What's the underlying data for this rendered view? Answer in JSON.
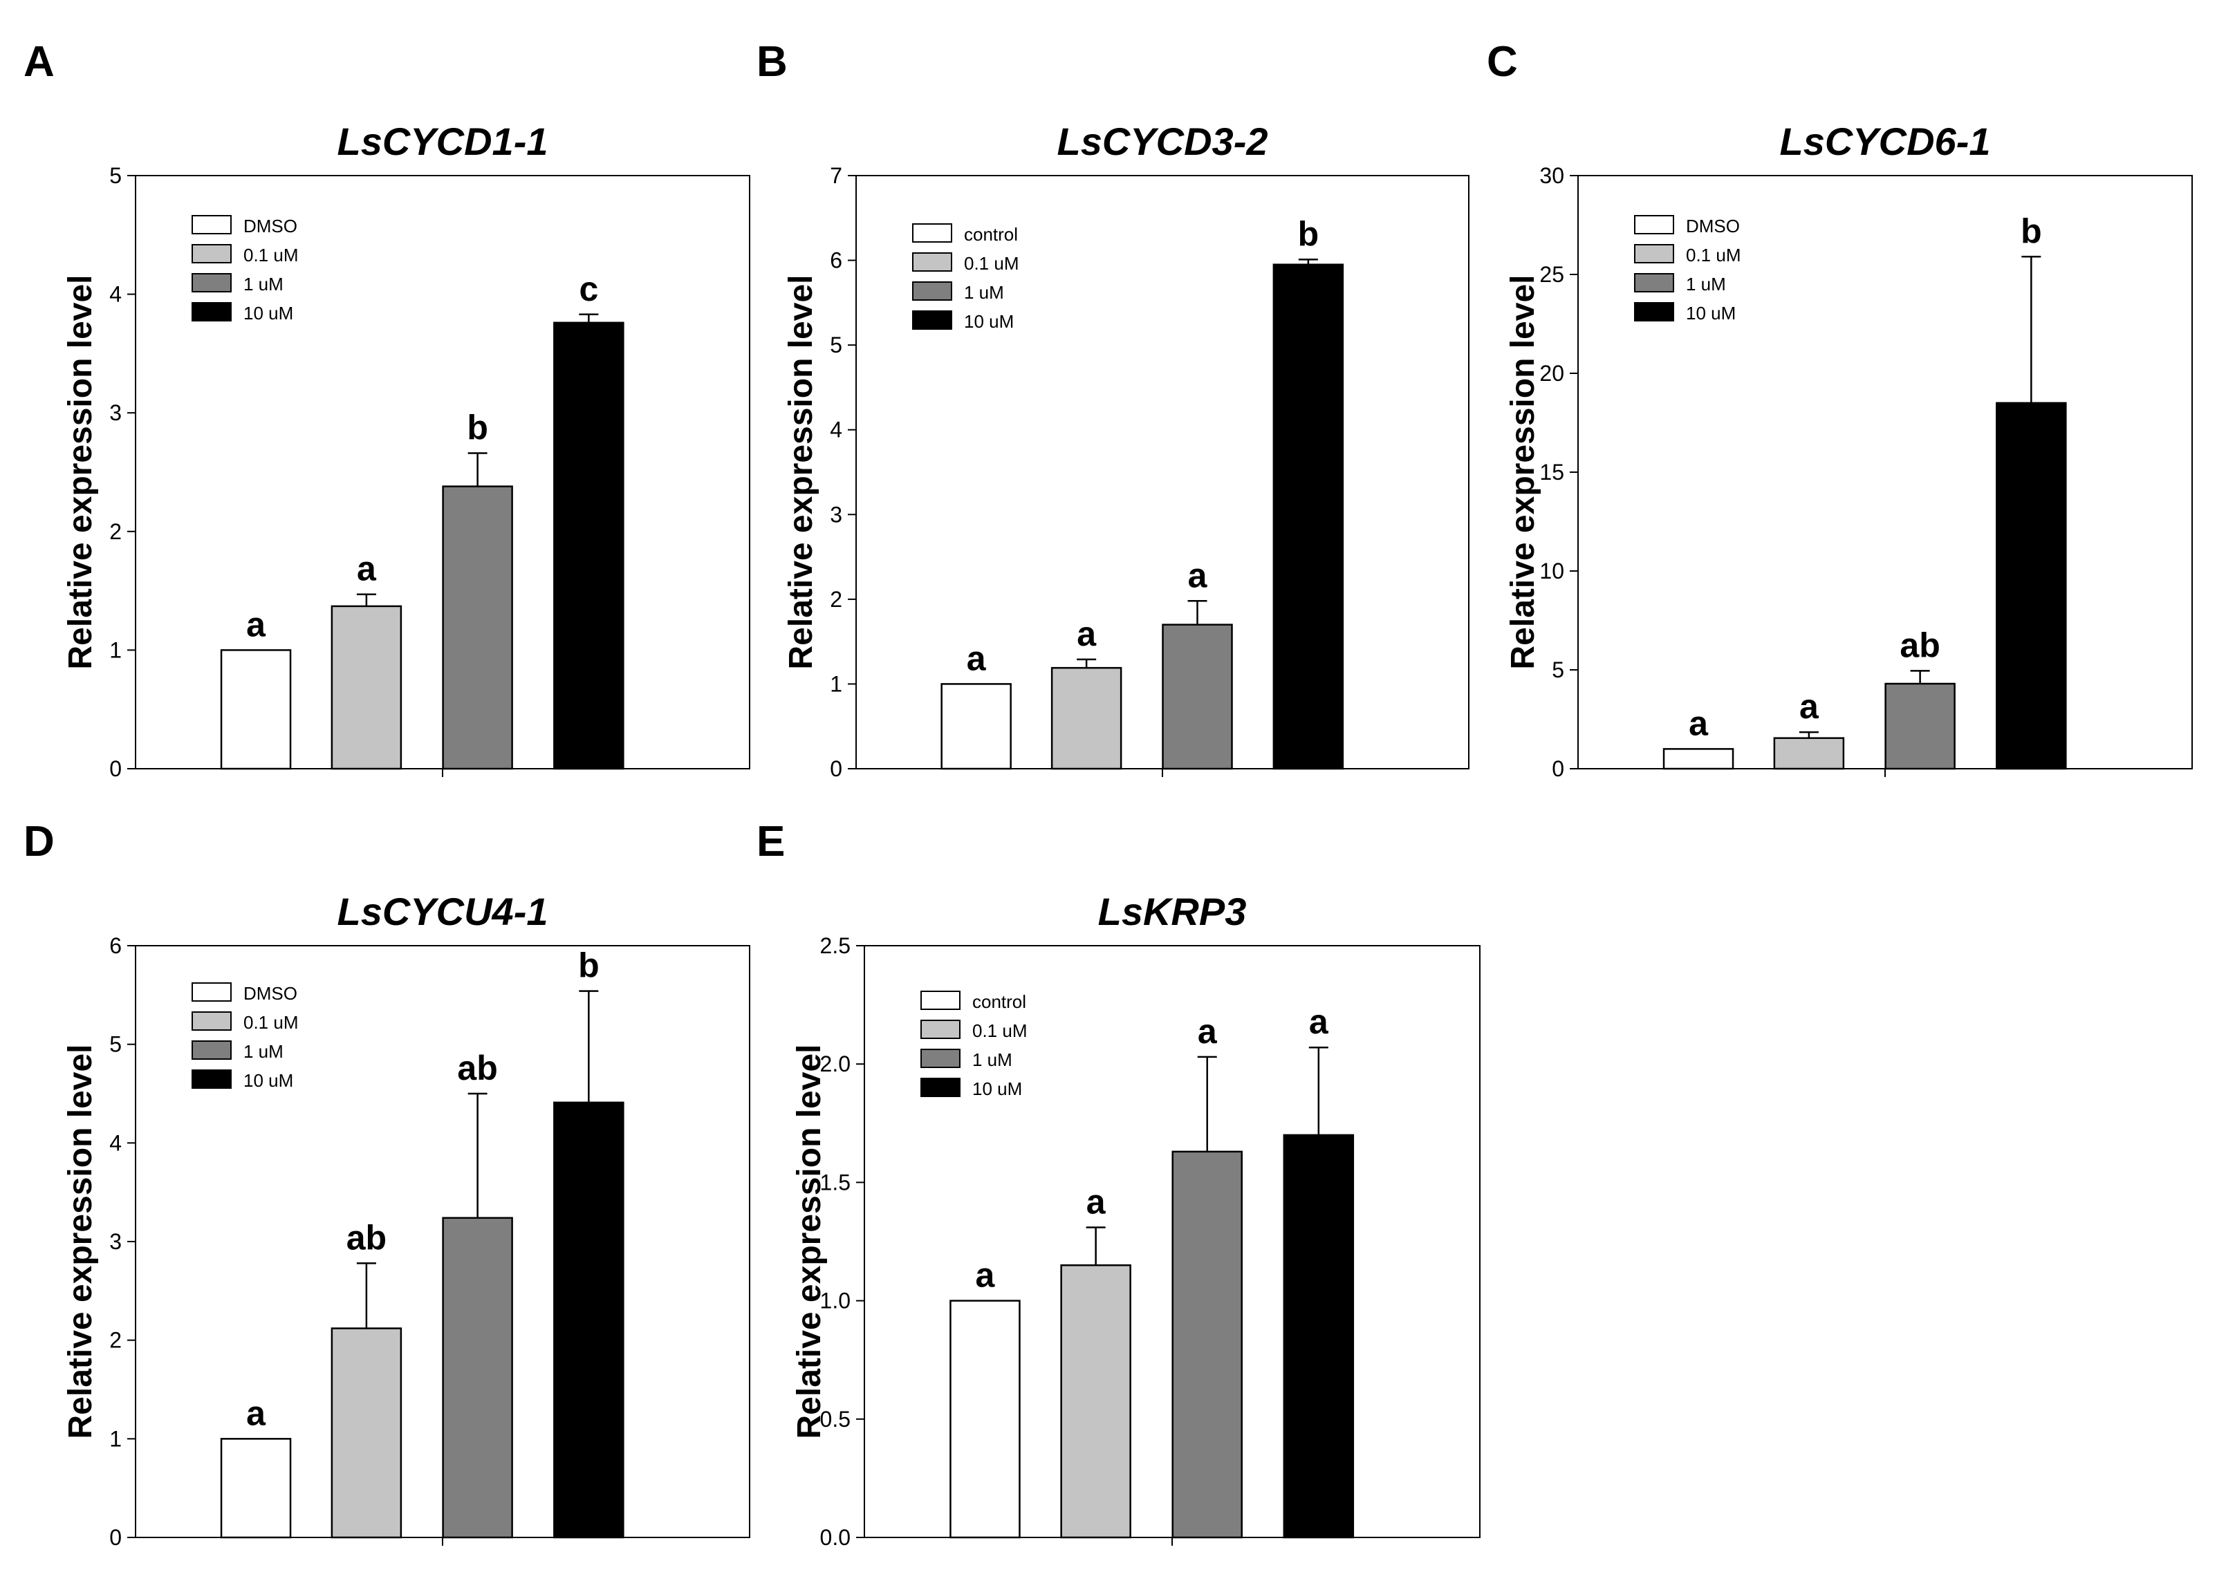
{
  "chart_data": [
    {
      "id": "A",
      "panel_label": "A",
      "type": "bar",
      "title": "LsCYCD1-1",
      "ylabel": "Relative expression level",
      "xlabel": "",
      "ylim": [
        0,
        5
      ],
      "yticks": [
        0,
        1,
        2,
        3,
        4,
        5
      ],
      "tick_format": "int",
      "legend_position": "top-left",
      "series": [
        {
          "name": "DMSO",
          "color": "#ffffff",
          "value": 1.0,
          "error": 0.0,
          "sig": "a"
        },
        {
          "name": "0.1 uM",
          "color": "#c4c4c4",
          "value": 1.37,
          "error": 0.1,
          "sig": "a"
        },
        {
          "name": "1 uM",
          "color": "#7f7f7f",
          "value": 2.38,
          "error": 0.28,
          "sig": "b"
        },
        {
          "name": "10 uM",
          "color": "#000000",
          "value": 3.76,
          "error": 0.07,
          "sig": "c"
        }
      ]
    },
    {
      "id": "B",
      "panel_label": "B",
      "type": "bar",
      "title": "LsCYCD3-2",
      "ylabel": "Relative expression level",
      "xlabel": "",
      "ylim": [
        0,
        7
      ],
      "yticks": [
        0,
        1,
        2,
        3,
        4,
        5,
        6,
        7
      ],
      "tick_format": "int",
      "legend_position": "top-left",
      "series": [
        {
          "name": "control",
          "color": "#ffffff",
          "value": 1.0,
          "error": 0.0,
          "sig": "a"
        },
        {
          "name": "0.1 uM",
          "color": "#c4c4c4",
          "value": 1.19,
          "error": 0.1,
          "sig": "a"
        },
        {
          "name": "1 uM",
          "color": "#7f7f7f",
          "value": 1.7,
          "error": 0.28,
          "sig": "a"
        },
        {
          "name": "10 uM",
          "color": "#000000",
          "value": 5.95,
          "error": 0.06,
          "sig": "b"
        }
      ]
    },
    {
      "id": "C",
      "panel_label": "C",
      "type": "bar",
      "title": "LsCYCD6-1",
      "ylabel": "Relative expression level",
      "xlabel": "",
      "ylim": [
        0,
        30
      ],
      "yticks": [
        0,
        5,
        10,
        15,
        20,
        25,
        30
      ],
      "tick_format": "int",
      "legend_position": "top-left",
      "series": [
        {
          "name": "DMSO",
          "color": "#ffffff",
          "value": 1.0,
          "error": 0.0,
          "sig": "a"
        },
        {
          "name": "0.1 uM",
          "color": "#c4c4c4",
          "value": 1.55,
          "error": 0.3,
          "sig": "a"
        },
        {
          "name": "1 uM",
          "color": "#7f7f7f",
          "value": 4.3,
          "error": 0.65,
          "sig": "ab"
        },
        {
          "name": "10 uM",
          "color": "#000000",
          "value": 18.5,
          "error": 7.4,
          "sig": "b"
        }
      ]
    },
    {
      "id": "D",
      "panel_label": "D",
      "type": "bar",
      "title": "LsCYCU4-1",
      "ylabel": "Relative expression level",
      "xlabel": "",
      "ylim": [
        0,
        6
      ],
      "yticks": [
        0,
        1,
        2,
        3,
        4,
        5,
        6
      ],
      "tick_format": "int",
      "legend_position": "top-left",
      "series": [
        {
          "name": "DMSO",
          "color": "#ffffff",
          "value": 1.0,
          "error": 0.0,
          "sig": "a"
        },
        {
          "name": "0.1 uM",
          "color": "#c4c4c4",
          "value": 2.12,
          "error": 0.66,
          "sig": "ab"
        },
        {
          "name": "1 uM",
          "color": "#7f7f7f",
          "value": 3.24,
          "error": 1.26,
          "sig": "ab"
        },
        {
          "name": "10 uM",
          "color": "#000000",
          "value": 4.41,
          "error": 1.13,
          "sig": "b"
        }
      ]
    },
    {
      "id": "E",
      "panel_label": "E",
      "type": "bar",
      "title": "LsKRP3",
      "ylabel": "Relative expression level",
      "xlabel": "",
      "ylim": [
        0,
        2.5
      ],
      "yticks": [
        0,
        0.5,
        1.0,
        1.5,
        2.0,
        2.5
      ],
      "tick_format": "one_decimal",
      "legend_position": "top-left",
      "series": [
        {
          "name": "control",
          "color": "#ffffff",
          "value": 1.0,
          "error": 0.0,
          "sig": "a"
        },
        {
          "name": "0.1 uM",
          "color": "#c4c4c4",
          "value": 1.15,
          "error": 0.16,
          "sig": "a"
        },
        {
          "name": "1 uM",
          "color": "#7f7f7f",
          "value": 1.63,
          "error": 0.4,
          "sig": "a"
        },
        {
          "name": "10 uM",
          "color": "#000000",
          "value": 1.7,
          "error": 0.37,
          "sig": "a"
        }
      ]
    }
  ]
}
